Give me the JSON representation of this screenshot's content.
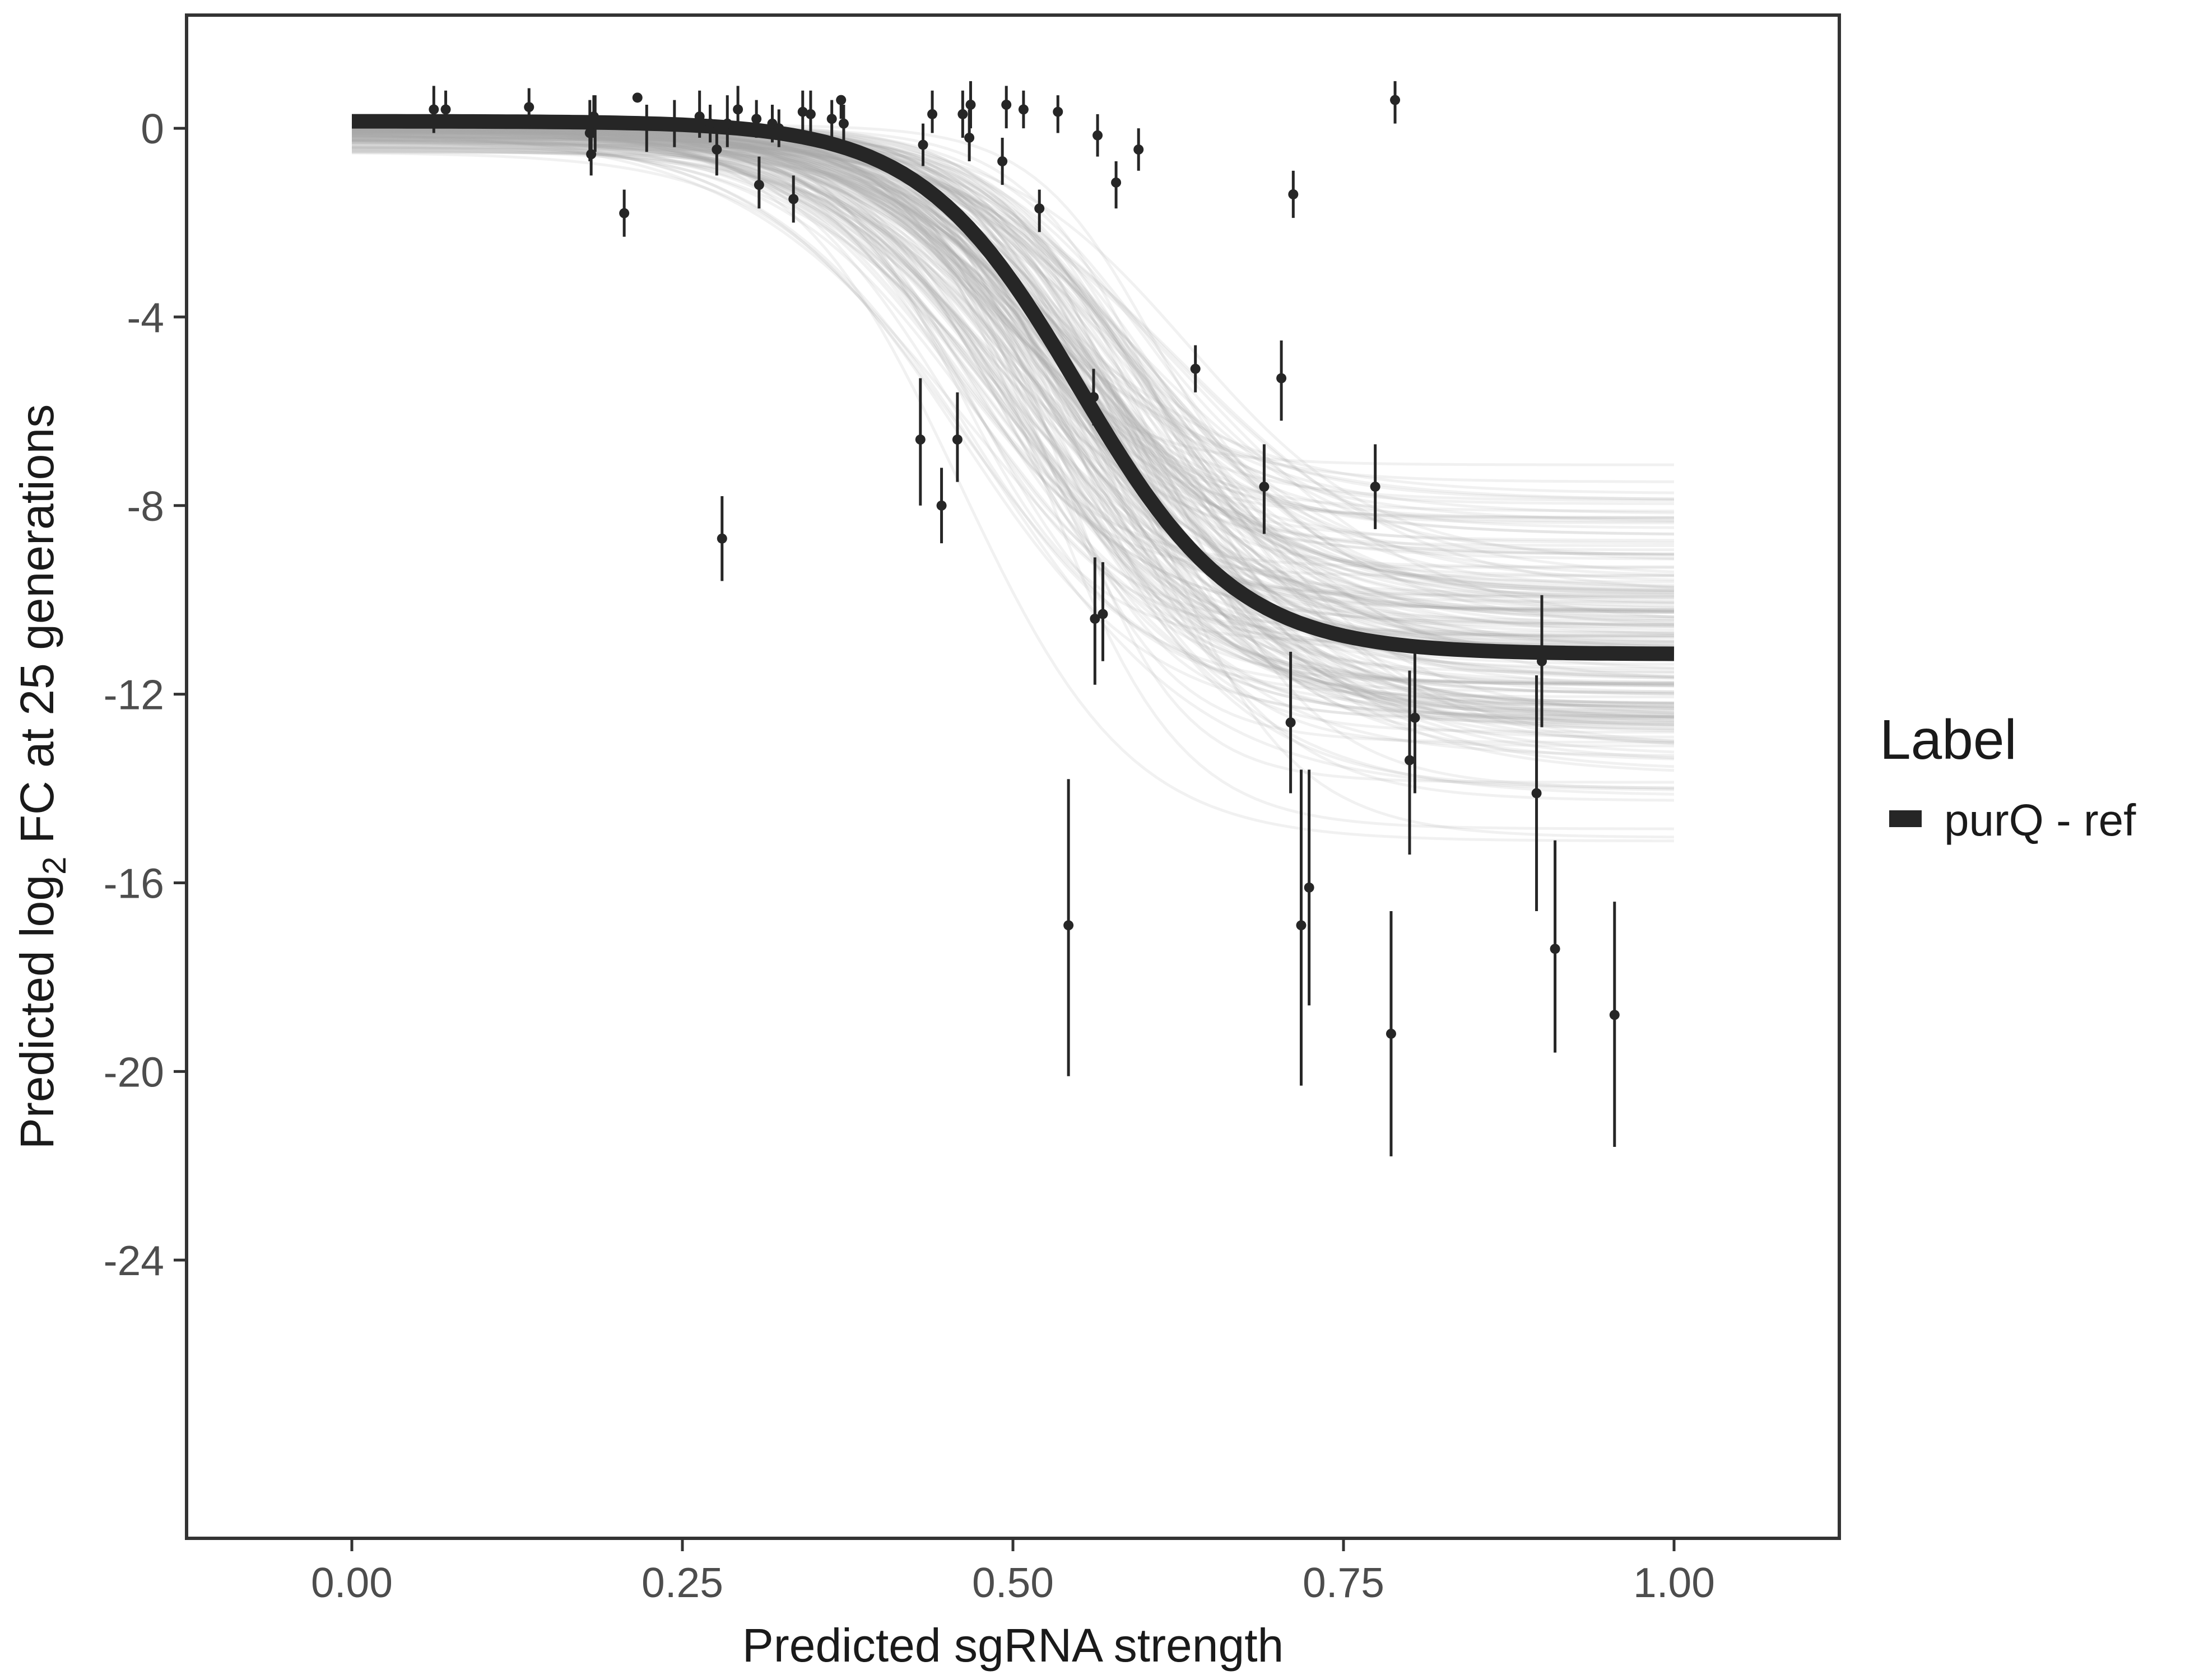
{
  "chart_data": {
    "type": "scatter",
    "title": "",
    "xlabel": "Predicted sgRNA strength",
    "ylabel": "Predicted  log2 FC at 25 generations",
    "ylabel_parts": {
      "prefix": "Predicted  log",
      "subscript": "2",
      "suffix": " FC at 25 generations"
    },
    "xlim": [
      -0.125,
      1.125
    ],
    "ylim": [
      -29.9,
      2.4
    ],
    "x_ticks": [
      0.0,
      0.25,
      0.5,
      0.75,
      1.0
    ],
    "x_tick_labels": [
      "0.00",
      "0.25",
      "0.50",
      "0.75",
      "1.00"
    ],
    "y_ticks": [
      0,
      -4,
      -8,
      -12,
      -16,
      -20,
      -24
    ],
    "y_tick_labels": [
      "0",
      "-4",
      "-8",
      "-12",
      "-16",
      "-20",
      "-24"
    ],
    "grid": false,
    "legend": {
      "title": "Label",
      "position": "right",
      "entries": [
        {
          "label": "purQ - ref",
          "color": "#262626"
        }
      ]
    },
    "fit_curve": {
      "name": "purQ - ref",
      "model": "logistic",
      "upper": 0.15,
      "lower": -11.15,
      "midpoint": 0.55,
      "scale": 0.06,
      "color": "#262626"
    },
    "posterior_draws": {
      "count": 200,
      "color": "#aaaaaa",
      "upper_range": [
        -0.6,
        0.15
      ],
      "lower_range": [
        -15.8,
        -6.0
      ],
      "midpoint_range": [
        0.44,
        0.64
      ],
      "scale_range": [
        0.045,
        0.09
      ]
    },
    "points": [
      {
        "x": 0.062,
        "y": 0.4,
        "lo": -0.1,
        "hi": 0.9
      },
      {
        "x": 0.071,
        "y": 0.4,
        "lo": 0.0,
        "hi": 0.8
      },
      {
        "x": 0.134,
        "y": 0.45,
        "lo": 0.05,
        "hi": 0.85
      },
      {
        "x": 0.18,
        "y": -0.1,
        "lo": -0.7,
        "hi": 0.6
      },
      {
        "x": 0.181,
        "y": -0.55,
        "lo": -1.0,
        "hi": -0.1
      },
      {
        "x": 0.183,
        "y": 0.25,
        "lo": -0.2,
        "hi": 0.7
      },
      {
        "x": 0.184,
        "y": 0.1,
        "lo": -0.5,
        "hi": 0.7
      },
      {
        "x": 0.206,
        "y": -1.8,
        "lo": -2.3,
        "hi": -1.3
      },
      {
        "x": 0.216,
        "y": 0.65,
        "lo": 0.6,
        "hi": 0.7
      },
      {
        "x": 0.223,
        "y": 0.05,
        "lo": -0.5,
        "hi": 0.5
      },
      {
        "x": 0.244,
        "y": 0.1,
        "lo": -0.4,
        "hi": 0.6
      },
      {
        "x": 0.263,
        "y": 0.25,
        "lo": -0.2,
        "hi": 0.8
      },
      {
        "x": 0.271,
        "y": 0.1,
        "lo": -0.3,
        "hi": 0.5
      },
      {
        "x": 0.276,
        "y": -0.45,
        "lo": -1.0,
        "hi": 0.1
      },
      {
        "x": 0.28,
        "y": -8.7,
        "lo": -9.6,
        "hi": -7.8
      },
      {
        "x": 0.284,
        "y": 0.1,
        "lo": -0.4,
        "hi": 0.7
      },
      {
        "x": 0.292,
        "y": 0.4,
        "lo": 0.0,
        "hi": 0.9
      },
      {
        "x": 0.306,
        "y": 0.2,
        "lo": -0.2,
        "hi": 0.6
      },
      {
        "x": 0.308,
        "y": -1.2,
        "lo": -1.7,
        "hi": -0.6
      },
      {
        "x": 0.318,
        "y": 0.1,
        "lo": -0.3,
        "hi": 0.5
      },
      {
        "x": 0.323,
        "y": 0.0,
        "lo": -0.4,
        "hi": 0.4
      },
      {
        "x": 0.334,
        "y": -1.5,
        "lo": -2.0,
        "hi": -1.0
      },
      {
        "x": 0.341,
        "y": 0.35,
        "lo": -0.1,
        "hi": 0.8
      },
      {
        "x": 0.347,
        "y": 0.3,
        "lo": -0.2,
        "hi": 0.8
      },
      {
        "x": 0.363,
        "y": 0.2,
        "lo": -0.2,
        "hi": 0.6
      },
      {
        "x": 0.37,
        "y": 0.6,
        "lo": 0.2,
        "hi": 0.7
      },
      {
        "x": 0.372,
        "y": 0.1,
        "lo": -0.3,
        "hi": 0.5
      },
      {
        "x": 0.43,
        "y": -6.6,
        "lo": -8.0,
        "hi": -5.3
      },
      {
        "x": 0.432,
        "y": -0.35,
        "lo": -0.8,
        "hi": 0.1
      },
      {
        "x": 0.439,
        "y": 0.3,
        "lo": -0.1,
        "hi": 0.8
      },
      {
        "x": 0.446,
        "y": -8.0,
        "lo": -8.8,
        "hi": -7.2
      },
      {
        "x": 0.458,
        "y": -6.6,
        "lo": -7.5,
        "hi": -5.6
      },
      {
        "x": 0.462,
        "y": 0.3,
        "lo": -0.2,
        "hi": 0.8
      },
      {
        "x": 0.467,
        "y": -0.2,
        "lo": -0.7,
        "hi": 0.4
      },
      {
        "x": 0.468,
        "y": 0.5,
        "lo": 0.0,
        "hi": 1.0
      },
      {
        "x": 0.492,
        "y": -0.7,
        "lo": -1.2,
        "hi": -0.2
      },
      {
        "x": 0.495,
        "y": 0.5,
        "lo": 0.0,
        "hi": 0.9
      },
      {
        "x": 0.508,
        "y": 0.4,
        "lo": 0.0,
        "hi": 0.8
      },
      {
        "x": 0.52,
        "y": -1.7,
        "lo": -2.2,
        "hi": -1.3
      },
      {
        "x": 0.534,
        "y": 0.35,
        "lo": -0.1,
        "hi": 0.7
      },
      {
        "x": 0.542,
        "y": -16.9,
        "lo": -20.1,
        "hi": -13.8
      },
      {
        "x": 0.561,
        "y": -5.7,
        "lo": -6.3,
        "hi": -5.1
      },
      {
        "x": 0.562,
        "y": -10.4,
        "lo": -11.8,
        "hi": -9.1
      },
      {
        "x": 0.564,
        "y": -0.15,
        "lo": -0.6,
        "hi": 0.3
      },
      {
        "x": 0.568,
        "y": -10.3,
        "lo": -11.3,
        "hi": -9.2
      },
      {
        "x": 0.578,
        "y": -1.15,
        "lo": -1.7,
        "hi": -0.7
      },
      {
        "x": 0.595,
        "y": -0.45,
        "lo": -0.9,
        "hi": 0.0
      },
      {
        "x": 0.638,
        "y": -5.1,
        "lo": -5.6,
        "hi": -4.6
      },
      {
        "x": 0.69,
        "y": -7.6,
        "lo": -8.6,
        "hi": -6.7
      },
      {
        "x": 0.703,
        "y": -5.3,
        "lo": -6.2,
        "hi": -4.5
      },
      {
        "x": 0.71,
        "y": -12.6,
        "lo": -14.1,
        "hi": -11.1
      },
      {
        "x": 0.712,
        "y": -1.4,
        "lo": -1.9,
        "hi": -0.9
      },
      {
        "x": 0.718,
        "y": -16.9,
        "lo": -20.3,
        "hi": -13.6
      },
      {
        "x": 0.724,
        "y": -16.1,
        "lo": -18.6,
        "hi": -13.6
      },
      {
        "x": 0.774,
        "y": -7.6,
        "lo": -8.5,
        "hi": -6.7
      },
      {
        "x": 0.786,
        "y": -19.2,
        "lo": -21.8,
        "hi": -16.6
      },
      {
        "x": 0.789,
        "y": 0.6,
        "lo": 0.1,
        "hi": 1.0
      },
      {
        "x": 0.8,
        "y": -13.4,
        "lo": -15.4,
        "hi": -11.5
      },
      {
        "x": 0.804,
        "y": -12.5,
        "lo": -14.1,
        "hi": -10.9
      },
      {
        "x": 0.896,
        "y": -14.1,
        "lo": -16.6,
        "hi": -11.6
      },
      {
        "x": 0.9,
        "y": -11.3,
        "lo": -12.7,
        "hi": -9.9
      },
      {
        "x": 0.91,
        "y": -17.4,
        "lo": -19.6,
        "hi": -15.1
      },
      {
        "x": 0.955,
        "y": -18.8,
        "lo": -21.6,
        "hi": -16.4
      }
    ]
  }
}
